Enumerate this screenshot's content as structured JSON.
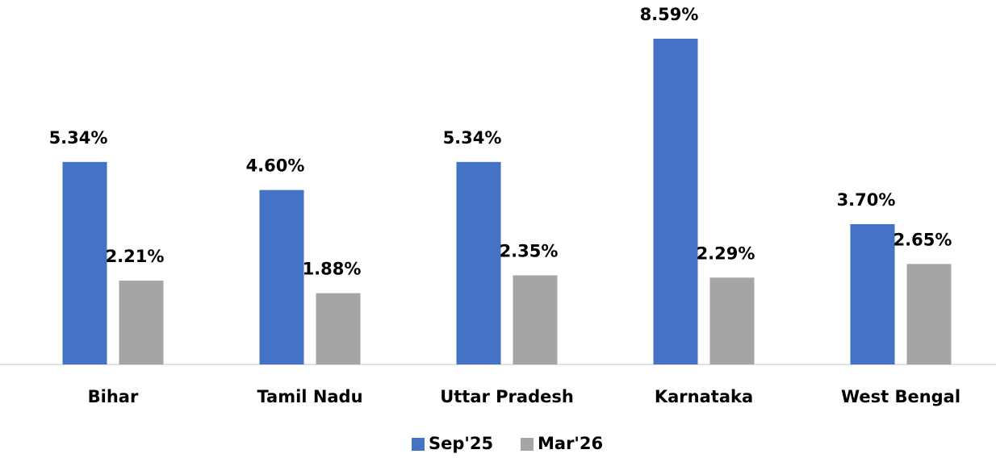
{
  "chart_data": {
    "type": "bar",
    "categories": [
      "Bihar",
      "Tamil Nadu",
      "Uttar Pradesh",
      "Karnataka",
      "West Bengal"
    ],
    "series": [
      {
        "name": "Sep'25",
        "color": "#4472c4",
        "values": [
          5.34,
          4.6,
          5.34,
          8.59,
          3.7
        ],
        "value_labels": [
          "5.34%",
          "4.60%",
          "5.34%",
          "8.59%",
          "3.70%"
        ]
      },
      {
        "name": "Mar'26",
        "color": "#a5a5a5",
        "values": [
          2.21,
          1.88,
          2.35,
          2.29,
          2.65
        ],
        "value_labels": [
          "2.21%",
          "1.88%",
          "2.35%",
          "2.29%",
          "2.65%"
        ]
      }
    ],
    "legend": "bottom"
  }
}
